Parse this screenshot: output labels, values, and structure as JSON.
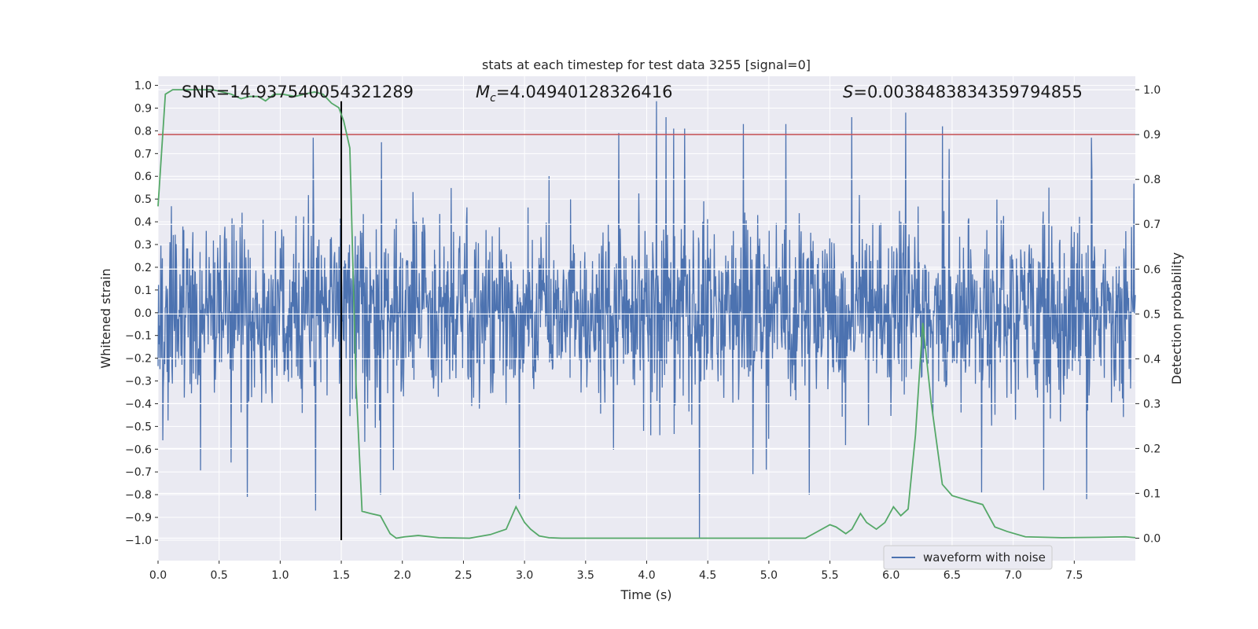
{
  "chart_data": {
    "type": "line",
    "title": "stats at each timestep for test data 3255 [signal=0]",
    "xlabel": "Time (s)",
    "ylabel": "Whitened strain",
    "y2label": "Detection probability",
    "xlim": [
      0,
      8
    ],
    "ylim": [
      -1.09,
      1.04
    ],
    "y2lim": [
      -0.05,
      1.03
    ],
    "xticks": [
      "0.0",
      "0.5",
      "1.0",
      "1.5",
      "2.0",
      "2.5",
      "3.0",
      "3.5",
      "4.0",
      "4.5",
      "5.0",
      "5.5",
      "6.0",
      "6.5",
      "7.0",
      "7.5"
    ],
    "xtick_values": [
      0,
      0.5,
      1,
      1.5,
      2,
      2.5,
      3,
      3.5,
      4,
      4.5,
      5,
      5.5,
      6,
      6.5,
      7,
      7.5
    ],
    "yticks": [
      "1.0",
      "0.9",
      "0.8",
      "0.7",
      "0.6",
      "0.5",
      "0.4",
      "0.3",
      "0.2",
      "0.1",
      "0.0",
      "−0.1",
      "−0.2",
      "−0.3",
      "−0.4",
      "−0.5",
      "−0.6",
      "−0.7",
      "−0.8",
      "−0.9",
      "−1.0"
    ],
    "ytick_values": [
      1.0,
      0.9,
      0.8,
      0.7,
      0.6,
      0.5,
      0.4,
      0.3,
      0.2,
      0.1,
      0.0,
      -0.1,
      -0.2,
      -0.3,
      -0.4,
      -0.5,
      -0.6,
      -0.7,
      -0.8,
      -0.9,
      -1.0
    ],
    "y2ticks": [
      "1.0",
      "0.9",
      "0.8",
      "0.7",
      "0.6",
      "0.5",
      "0.4",
      "0.3",
      "0.2",
      "0.1",
      "0.0"
    ],
    "y2tick_values": [
      1.0,
      0.9,
      0.8,
      0.7,
      0.6,
      0.5,
      0.4,
      0.3,
      0.2,
      0.1,
      0.0
    ],
    "annotations": {
      "snr_text": "SNR=14.937540054321289",
      "mc_symbol": "M",
      "mc_sub": "c",
      "mc_value": "=4.04940128326416",
      "s_symbol": "S",
      "s_value": "=0.0038483834359794855"
    },
    "legend": {
      "entries": [
        "waveform with noise"
      ],
      "position": "lower-right"
    },
    "threshold": {
      "value": 0.9,
      "axis": "right",
      "color": "#c44e52"
    },
    "marker_line": {
      "x": 1.5,
      "y_from": -1.0,
      "y_to": 0.93,
      "color": "#000000"
    },
    "waveform": {
      "name": "waveform with noise",
      "color": "#4c72b0",
      "samples": 2048,
      "seed": 3255,
      "sigma": 0.2,
      "spikes": [
        {
          "x": 1.27,
          "y": 0.77
        },
        {
          "x": 1.29,
          "y": -0.87
        },
        {
          "x": 0.73,
          "y": -0.81
        },
        {
          "x": 1.83,
          "y": 0.75
        },
        {
          "x": 1.82,
          "y": -0.8
        },
        {
          "x": 2.96,
          "y": -0.82
        },
        {
          "x": 3.77,
          "y": 0.79
        },
        {
          "x": 4.08,
          "y": 0.93
        },
        {
          "x": 4.16,
          "y": 0.86
        },
        {
          "x": 4.22,
          "y": 0.81
        },
        {
          "x": 4.31,
          "y": 0.81
        },
        {
          "x": 4.43,
          "y": -0.99
        },
        {
          "x": 4.79,
          "y": 0.83
        },
        {
          "x": 4.87,
          "y": -0.71
        },
        {
          "x": 4.98,
          "y": -0.69
        },
        {
          "x": 5.14,
          "y": 0.83
        },
        {
          "x": 5.33,
          "y": -0.8
        },
        {
          "x": 5.68,
          "y": 0.86
        },
        {
          "x": 6.12,
          "y": 0.88
        },
        {
          "x": 6.42,
          "y": 0.82
        },
        {
          "x": 6.74,
          "y": -0.79
        },
        {
          "x": 7.25,
          "y": -0.78
        },
        {
          "x": 7.64,
          "y": 0.77
        },
        {
          "x": 7.6,
          "y": -0.82
        }
      ]
    },
    "probability": {
      "name": "detection probability",
      "color": "#55a868",
      "x": [
        0,
        0.06,
        0.12,
        0.2,
        0.3,
        0.45,
        0.6,
        0.68,
        0.75,
        0.82,
        0.88,
        0.95,
        1.02,
        1.12,
        1.2,
        1.28,
        1.35,
        1.42,
        1.48,
        1.52,
        1.57,
        1.62,
        1.67,
        1.74,
        1.82,
        1.9,
        1.95,
        2.02,
        2.13,
        2.3,
        2.55,
        2.72,
        2.85,
        2.93,
        3.0,
        3.05,
        3.12,
        3.2,
        3.3,
        3.55,
        3.9,
        4.4,
        4.9,
        5.3,
        5.5,
        5.55,
        5.63,
        5.68,
        5.75,
        5.8,
        5.88,
        5.95,
        6.02,
        6.08,
        6.14,
        6.2,
        6.26,
        6.33,
        6.42,
        6.5,
        6.62,
        6.75,
        6.85,
        6.95,
        7.1,
        7.4,
        7.7,
        7.92,
        8.0
      ],
      "y": [
        0.74,
        0.99,
        1.0,
        1.0,
        1.0,
        1.0,
        0.99,
        0.98,
        0.985,
        0.985,
        0.975,
        0.99,
        0.99,
        0.985,
        0.99,
        0.995,
        0.99,
        0.97,
        0.96,
        0.93,
        0.87,
        0.35,
        0.06,
        0.055,
        0.05,
        0.01,
        0.0,
        0.003,
        0.006,
        0.001,
        0.0,
        0.008,
        0.02,
        0.07,
        0.035,
        0.02,
        0.005,
        0.001,
        0.0,
        0.0,
        0.0,
        0.0,
        0.0,
        0.0,
        0.03,
        0.025,
        0.01,
        0.02,
        0.055,
        0.035,
        0.02,
        0.035,
        0.07,
        0.05,
        0.065,
        0.23,
        0.48,
        0.3,
        0.12,
        0.095,
        0.085,
        0.075,
        0.025,
        0.015,
        0.003,
        0.001,
        0.002,
        0.003,
        0.001
      ]
    }
  }
}
